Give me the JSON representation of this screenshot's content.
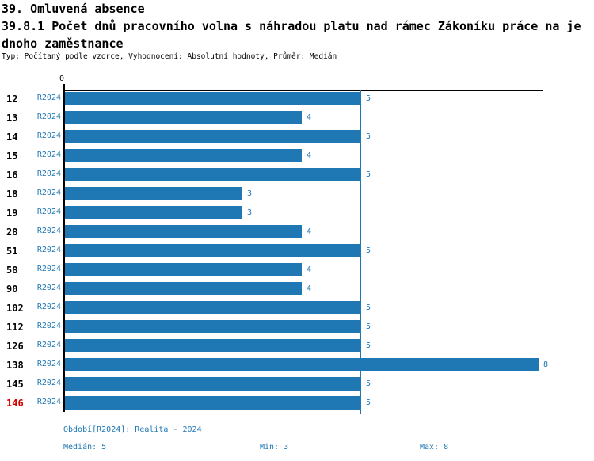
{
  "title": {
    "line1": "39. Omluvená absence",
    "line2": "39.8.1 Počet dnů pracovního volna s náhradou platu nad rámec Zákoníku práce na je",
    "line3": "dnoho zaměstnance",
    "meta": "Typ: Počítaný podle vzorce, Vyhodnocení: Absolutní hodnoty, Průměr: Medián"
  },
  "chart_data": {
    "type": "bar",
    "orientation": "horizontal",
    "axis_zero_label": "0",
    "series_label": "R2024",
    "categories": [
      "12",
      "13",
      "14",
      "15",
      "16",
      "18",
      "19",
      "28",
      "51",
      "58",
      "90",
      "102",
      "112",
      "126",
      "138",
      "145",
      "146"
    ],
    "values": [
      5,
      4,
      5,
      4,
      5,
      3,
      3,
      4,
      5,
      4,
      4,
      5,
      5,
      5,
      8,
      5,
      5
    ],
    "highlighted_category": "146",
    "median_reference_line": 5,
    "xlim": [
      0,
      8.1
    ],
    "legend_position": "none",
    "grid": false,
    "colors": {
      "bar": "#1f77b4",
      "label_blue": "#1f77b4",
      "category_text": "#000000",
      "highlight_red": "#d40000",
      "axis": "#000000"
    }
  },
  "footer": {
    "period": "Období[R2024]: Realita - 2024",
    "median": "Medián: 5",
    "min": "Min: 3",
    "max": "Max: 8"
  }
}
